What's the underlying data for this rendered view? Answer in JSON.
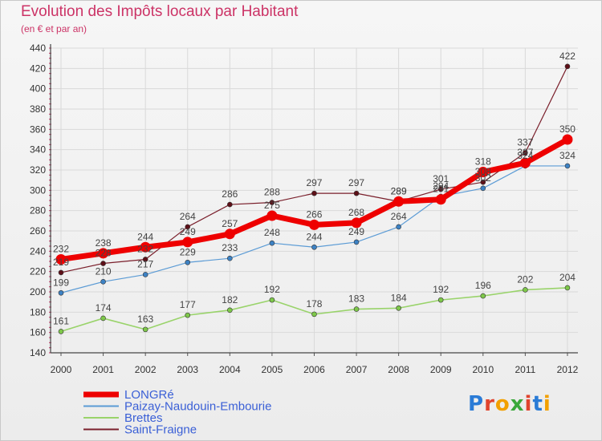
{
  "title": "Evolution des Impôts locaux par Habitant",
  "subtitle": "(en € et par an)",
  "logo": {
    "text": "Proxiti",
    "letter_colors": [
      "#2a7bd6",
      "#e0442e",
      "#f2a000",
      "#3aa83a",
      "#e0442e",
      "#2a7bd6",
      "#f2a000"
    ]
  },
  "chart_data": {
    "type": "line",
    "x": [
      "2000",
      "2001",
      "2002",
      "2003",
      "2004",
      "2005",
      "2006",
      "2007",
      "2008",
      "2009",
      "2010",
      "2011",
      "2012"
    ],
    "ylim": [
      140,
      440
    ],
    "yticks": [
      140,
      160,
      180,
      200,
      220,
      240,
      260,
      280,
      300,
      320,
      340,
      360,
      380,
      400,
      420,
      440
    ],
    "grid": true,
    "legend_position": "bottom-left",
    "series": [
      {
        "name": "Saint-Fraigne",
        "color": "#7a1f2b",
        "marker": "#5e1018",
        "width": 1.2,
        "markersize": 3,
        "values": [
          219,
          228,
          232,
          264,
          286,
          288,
          297,
          297,
          289,
          301,
          308,
          337,
          422
        ]
      },
      {
        "name": "Brettes",
        "color": "#99d36a",
        "marker": "#7ec84a",
        "width": 1.6,
        "markersize": 3,
        "values": [
          161,
          174,
          163,
          177,
          182,
          192,
          178,
          183,
          184,
          192,
          196,
          202,
          204
        ]
      },
      {
        "name": "Paizay-Naudouin-Embourie",
        "color": "#5b9bd5",
        "marker": "#3d82c4",
        "width": 1.2,
        "markersize": 3,
        "values": [
          199,
          210,
          217,
          229,
          233,
          248,
          244,
          249,
          264,
          294,
          302,
          324,
          324
        ]
      },
      {
        "name": "LONGRé",
        "color": "#ee0000",
        "marker": "#ee0000",
        "width": 7,
        "markersize": 6.5,
        "values": [
          232,
          238,
          244,
          249,
          257,
          275,
          266,
          268,
          289,
          291,
          318,
          327,
          350
        ]
      }
    ],
    "legend_order": [
      "LONGRé",
      "Paizay-Naudouin-Embourie",
      "Brettes",
      "Saint-Fraigne"
    ]
  }
}
